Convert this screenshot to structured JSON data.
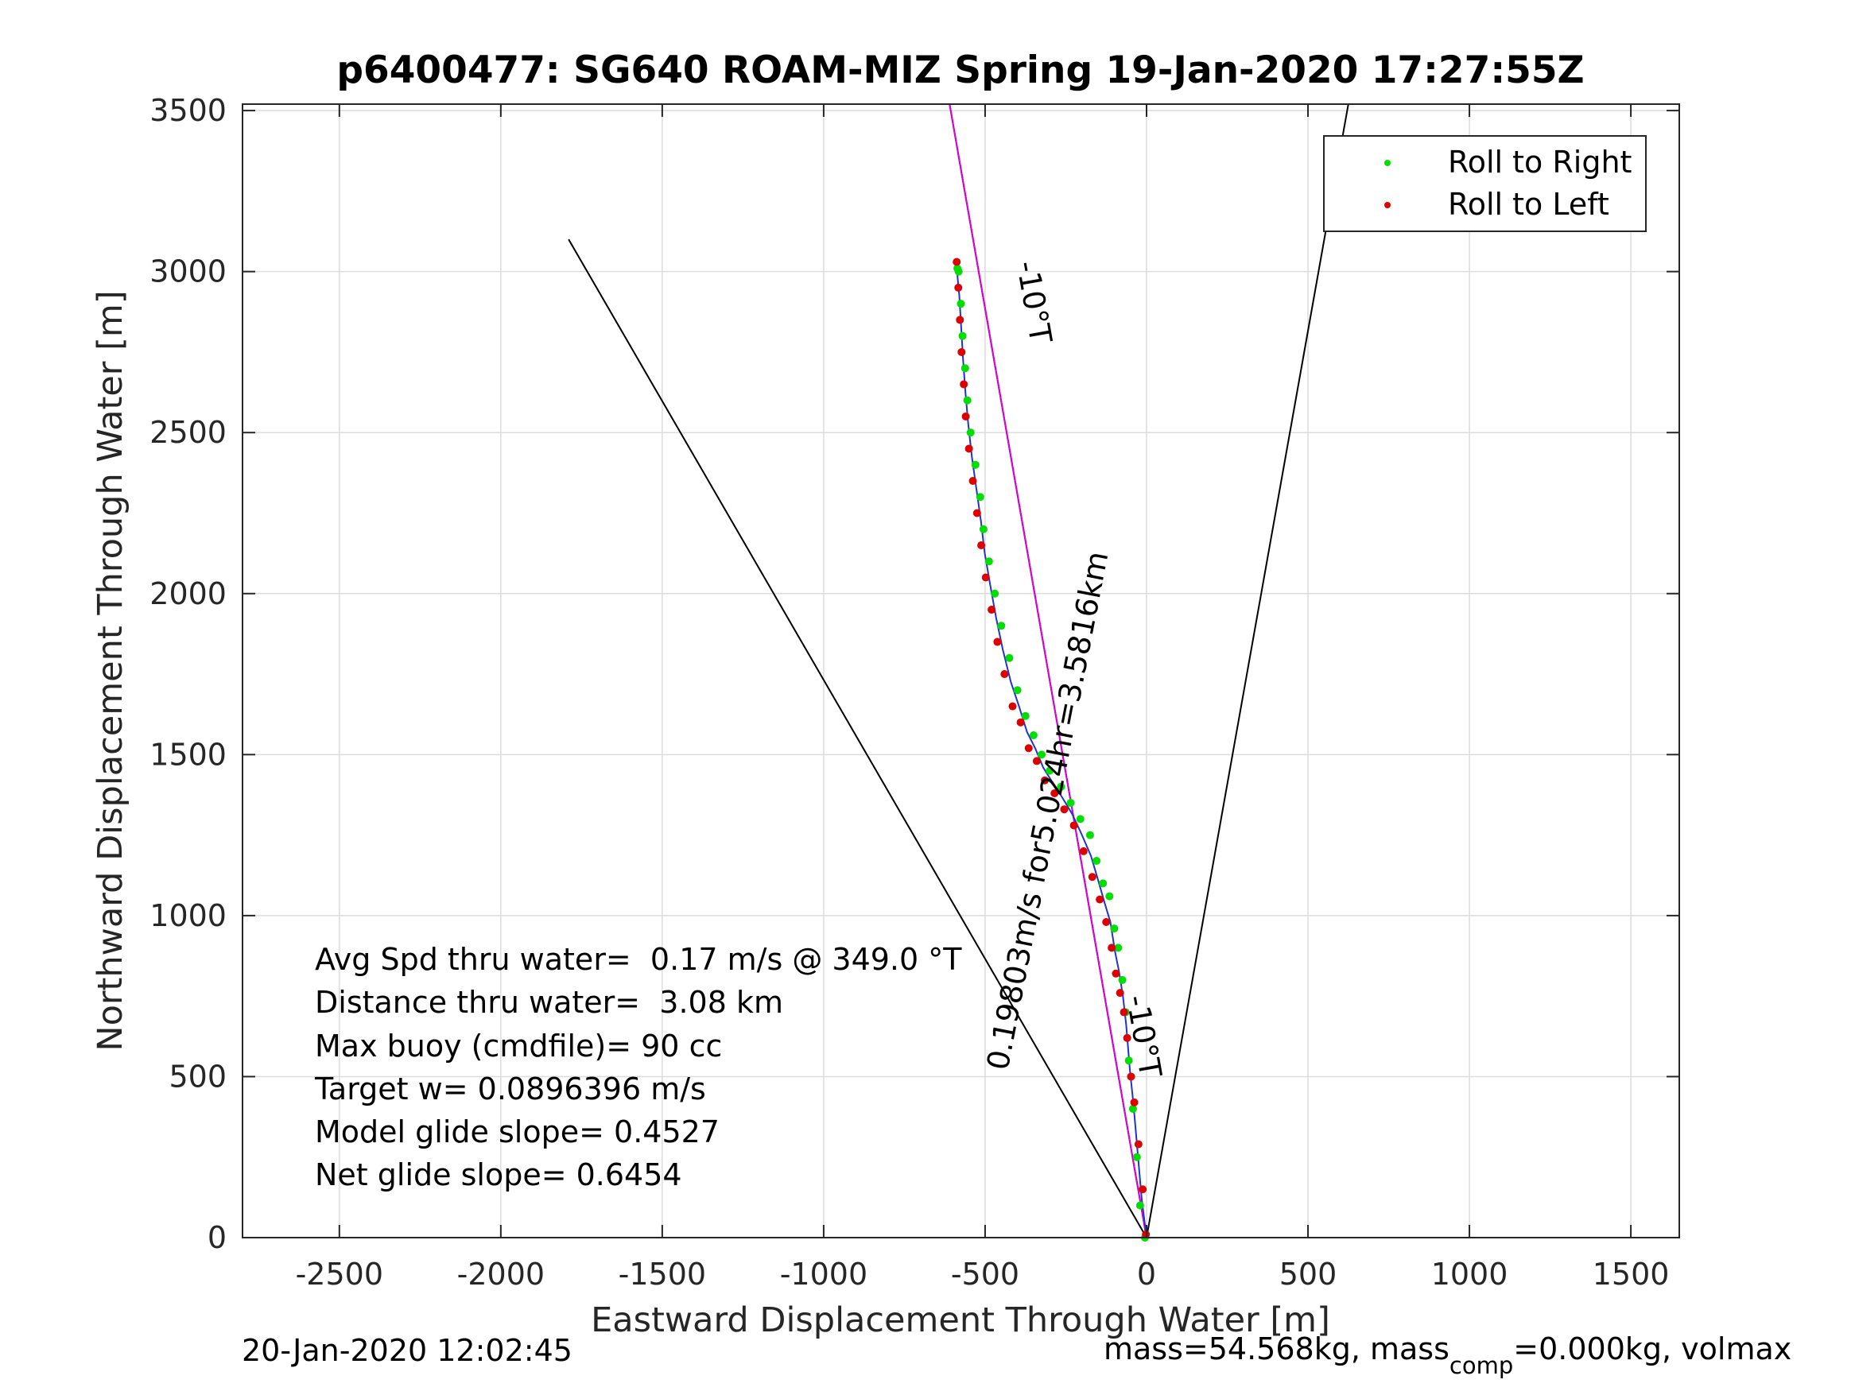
{
  "chart_data": {
    "type": "scatter",
    "title": "p6400477: SG640 ROAM-MIZ Spring 19-Jan-2020 17:27:55Z",
    "xlabel": "Eastward Displacement Through Water [m]",
    "ylabel": "Northward Displacement Through Water [m]",
    "xlim": [
      -2800,
      1650
    ],
    "ylim": [
      0,
      3520
    ],
    "xticks": [
      -2500,
      -2000,
      -1500,
      -1000,
      -500,
      0,
      500,
      1000,
      1500
    ],
    "yticks": [
      0,
      500,
      1000,
      1500,
      2000,
      2500,
      3000,
      3500
    ],
    "xtick_labels": [
      "-2500",
      "-2000",
      "-1500",
      "-1000",
      "-500",
      "0",
      "500",
      "1000",
      "1500"
    ],
    "ytick_labels": [
      "0",
      "500",
      "1000",
      "1500",
      "2000",
      "2500",
      "3000",
      "3500"
    ],
    "grid": true,
    "legend_position": "top-right",
    "legend": [
      {
        "name": "Roll to Right",
        "color": "#00dd00"
      },
      {
        "name": "Roll to Left",
        "color": "#dd0000"
      }
    ],
    "series": [
      {
        "name": "Roll to Right",
        "color": "#00dd00",
        "x": [
          -5,
          -20,
          -30,
          -42,
          -55,
          -65,
          -75,
          -88,
          -100,
          -115,
          -135,
          -155,
          -175,
          -205,
          -235,
          -265,
          -300,
          -325,
          -350,
          -375,
          -400,
          -425,
          -450,
          -470,
          -488,
          -505,
          -515,
          -530,
          -545,
          -555,
          -562,
          -570,
          -575,
          -582,
          -586
        ],
        "y": [
          0,
          100,
          250,
          400,
          550,
          700,
          800,
          900,
          960,
          1060,
          1100,
          1170,
          1250,
          1300,
          1350,
          1400,
          1450,
          1500,
          1560,
          1620,
          1700,
          1800,
          1900,
          2000,
          2100,
          2200,
          2300,
          2400,
          2500,
          2600,
          2700,
          2800,
          2900,
          3000,
          3010
        ]
      },
      {
        "name": "Roll to Left",
        "color": "#dd0000",
        "x": [
          -2,
          -12,
          -25,
          -38,
          -48,
          -60,
          -70,
          -82,
          -95,
          -108,
          -125,
          -145,
          -168,
          -195,
          -225,
          -255,
          -285,
          -315,
          -340,
          -365,
          -390,
          -415,
          -440,
          -462,
          -480,
          -498,
          -512,
          -525,
          -538,
          -550,
          -560,
          -566,
          -573,
          -578,
          -583,
          -588
        ],
        "y": [
          10,
          150,
          290,
          420,
          500,
          620,
          700,
          760,
          820,
          900,
          980,
          1050,
          1120,
          1200,
          1280,
          1330,
          1380,
          1420,
          1480,
          1520,
          1600,
          1650,
          1750,
          1850,
          1950,
          2050,
          2150,
          2250,
          2350,
          2450,
          2550,
          2650,
          2750,
          2850,
          2950,
          3030
        ]
      }
    ],
    "track": {
      "color": "#2233cc",
      "x": [
        0,
        -15,
        -28,
        -40,
        -52,
        -63,
        -73,
        -86,
        -98,
        -112,
        -130,
        -150,
        -172,
        -200,
        -230,
        -260,
        -292,
        -320,
        -345,
        -370,
        -395,
        -420,
        -445,
        -466,
        -484,
        -501,
        -513,
        -527,
        -541,
        -552,
        -561,
        -568,
        -574,
        -580,
        -585,
        -588
      ],
      "y": [
        0,
        120,
        270,
        410,
        525,
        660,
        750,
        830,
        890,
        980,
        1040,
        1110,
        1185,
        1250,
        1315,
        1365,
        1415,
        1460,
        1520,
        1570,
        1650,
        1725,
        1825,
        1925,
        2025,
        2125,
        2225,
        2325,
        2425,
        2525,
        2625,
        2725,
        2825,
        2925,
        2980,
        3030
      ]
    },
    "reference_lines": [
      {
        "color": "#000000",
        "x": [
          0,
          -1790
        ],
        "y": [
          0,
          3100
        ]
      },
      {
        "color": "#000000",
        "x": [
          0,
          625
        ],
        "y": [
          0,
          3520
        ]
      },
      {
        "color": "#000000",
        "x": [
          0,
          -610
        ],
        "y": [
          0,
          3520
        ]
      },
      {
        "color": "#dd00dd",
        "x": [
          0,
          -610
        ],
        "y": [
          0,
          3520
        ]
      }
    ],
    "rotated_labels": [
      {
        "text": "-10°T",
        "x": -380,
        "y": 2900,
        "angle": 80
      },
      {
        "text": "-10°T",
        "x": -40,
        "y": 620,
        "angle": 80
      },
      {
        "text": "0.19803m/s for5.024hr=3.5816km",
        "x": -275,
        "y": 1320,
        "angle": -79
      }
    ],
    "annotations": [
      "Avg Spd thru water=  0.17 m/s @ 349.0 °T",
      "Distance thru water=  3.08 km",
      "Max buoy (cmdfile)= 90 cc",
      "Target w= 0.0896396 m/s",
      "Model glide slope= 0.4527",
      "Net glide slope= 0.6454"
    ],
    "footer_left": "20-Jan-2020 12:02:45",
    "footer_right_pre": "mass=54.568kg, mass",
    "footer_right_sub": "comp",
    "footer_right_post": "=0.000kg, volmax"
  }
}
